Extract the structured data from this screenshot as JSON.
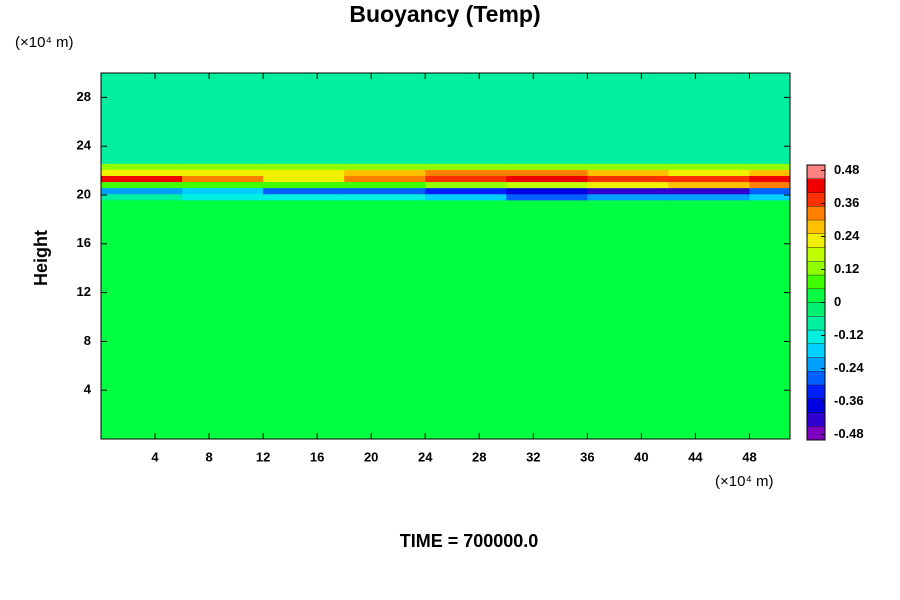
{
  "chart_data": {
    "type": "heatmap",
    "title": "Buoyancy (Temp)",
    "ylabel": "Height",
    "y_unit_label": "(×10⁴ m)",
    "x_unit_label": "(×10⁴ m)",
    "time_label": "TIME = 700000.0",
    "xlim": [
      0,
      51
    ],
    "ylim": [
      0,
      30
    ],
    "xticks": [
      4,
      8,
      12,
      16,
      20,
      24,
      28,
      32,
      36,
      40,
      44,
      48
    ],
    "yticks": [
      4,
      8,
      12,
      16,
      20,
      24,
      28
    ],
    "xbins": [
      0,
      6,
      12,
      18,
      24,
      30,
      36,
      42,
      48,
      51
    ],
    "ybins": [
      0,
      19.6,
      20.1,
      20.6,
      21.1,
      21.6,
      22.1,
      22.6,
      30
    ],
    "z": [
      [
        0.02,
        0.02,
        0.02,
        0.02,
        0.02,
        0.02,
        0.02,
        0.02,
        0.02
      ],
      [
        -0.1,
        -0.12,
        -0.15,
        -0.15,
        -0.2,
        -0.3,
        -0.25,
        -0.25,
        -0.2
      ],
      [
        -0.25,
        -0.2,
        -0.3,
        -0.3,
        -0.35,
        -0.4,
        -0.45,
        -0.45,
        -0.3
      ],
      [
        0.05,
        0.05,
        0.05,
        0.05,
        0.1,
        0.15,
        0.2,
        0.25,
        0.3
      ],
      [
        0.4,
        0.3,
        0.2,
        0.3,
        0.35,
        0.4,
        0.35,
        0.35,
        0.4
      ],
      [
        0.2,
        0.2,
        0.2,
        0.25,
        0.3,
        0.3,
        0.25,
        0.2,
        0.25
      ],
      [
        0.1,
        0.1,
        0.1,
        0.1,
        0.1,
        0.1,
        0.1,
        0.1,
        0.1
      ],
      [
        -0.08,
        -0.08,
        -0.08,
        -0.08,
        -0.08,
        -0.08,
        -0.08,
        -0.08,
        -0.08
      ]
    ],
    "clim": [
      -0.5,
      0.5
    ],
    "clevels": [
      -0.5,
      -0.45,
      -0.4,
      -0.35,
      -0.3,
      -0.25,
      -0.2,
      -0.15,
      -0.1,
      -0.05,
      0,
      0.05,
      0.1,
      0.15,
      0.2,
      0.25,
      0.3,
      0.35,
      0.4,
      0.45,
      0.5
    ],
    "colors": [
      "#8000c0",
      "#3000d0",
      "#0000e0",
      "#0020ff",
      "#0060ff",
      "#00a0ff",
      "#00d0ff",
      "#00f0e0",
      "#00f0a0",
      "#00f070",
      "#00ff40",
      "#40ff00",
      "#90ff00",
      "#c0ff00",
      "#f0f000",
      "#ffc000",
      "#ff8000",
      "#ff3000",
      "#f00000",
      "#ff8080"
    ],
    "cticks": [
      0.48,
      0.36,
      0.24,
      0.12,
      0,
      -0.12,
      -0.24,
      -0.36,
      -0.48
    ]
  }
}
